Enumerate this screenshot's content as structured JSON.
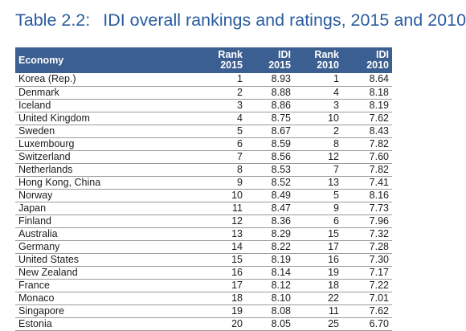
{
  "title": {
    "number": "Table 2.2:",
    "text": "IDI overall rankings and ratings, 2015 and 2010"
  },
  "columns": {
    "economy": "Economy",
    "rank2015": [
      "Rank",
      "2015"
    ],
    "idi2015": [
      "IDI",
      "2015"
    ],
    "rank2010": [
      "Rank",
      "2010"
    ],
    "idi2010": [
      "IDI",
      "2010"
    ]
  },
  "rows": [
    {
      "economy": "Korea (Rep.)",
      "rank2015": "1",
      "idi2015": "8.93",
      "rank2010": "1",
      "idi2010": "8.64"
    },
    {
      "economy": "Denmark",
      "rank2015": "2",
      "idi2015": "8.88",
      "rank2010": "4",
      "idi2010": "8.18"
    },
    {
      "economy": "Iceland",
      "rank2015": "3",
      "idi2015": "8.86",
      "rank2010": "3",
      "idi2010": "8.19"
    },
    {
      "economy": "United Kingdom",
      "rank2015": "4",
      "idi2015": "8.75",
      "rank2010": "10",
      "idi2010": "7.62"
    },
    {
      "economy": "Sweden",
      "rank2015": "5",
      "idi2015": "8.67",
      "rank2010": "2",
      "idi2010": "8.43"
    },
    {
      "economy": "Luxembourg",
      "rank2015": "6",
      "idi2015": "8.59",
      "rank2010": "8",
      "idi2010": "7.82"
    },
    {
      "economy": "Switzerland",
      "rank2015": "7",
      "idi2015": "8.56",
      "rank2010": "12",
      "idi2010": "7.60"
    },
    {
      "economy": "Netherlands",
      "rank2015": "8",
      "idi2015": "8.53",
      "rank2010": "7",
      "idi2010": "7.82"
    },
    {
      "economy": "Hong Kong, China",
      "rank2015": "9",
      "idi2015": "8.52",
      "rank2010": "13",
      "idi2010": "7.41"
    },
    {
      "economy": "Norway",
      "rank2015": "10",
      "idi2015": "8.49",
      "rank2010": "5",
      "idi2010": "8.16"
    },
    {
      "economy": "Japan",
      "rank2015": "11",
      "idi2015": "8.47",
      "rank2010": "9",
      "idi2010": "7.73"
    },
    {
      "economy": "Finland",
      "rank2015": "12",
      "idi2015": "8.36",
      "rank2010": "6",
      "idi2010": "7.96"
    },
    {
      "economy": "Australia",
      "rank2015": "13",
      "idi2015": "8.29",
      "rank2010": "15",
      "idi2010": "7.32"
    },
    {
      "economy": "Germany",
      "rank2015": "14",
      "idi2015": "8.22",
      "rank2010": "17",
      "idi2010": "7.28"
    },
    {
      "economy": "United States",
      "rank2015": "15",
      "idi2015": "8.19",
      "rank2010": "16",
      "idi2010": "7.30"
    },
    {
      "economy": "New Zealand",
      "rank2015": "16",
      "idi2015": "8.14",
      "rank2010": "19",
      "idi2010": "7.17"
    },
    {
      "economy": "France",
      "rank2015": "17",
      "idi2015": "8.12",
      "rank2010": "18",
      "idi2010": "7.22"
    },
    {
      "economy": "Monaco",
      "rank2015": "18",
      "idi2015": "8.10",
      "rank2010": "22",
      "idi2010": "7.01"
    },
    {
      "economy": "Singapore",
      "rank2015": "19",
      "idi2015": "8.08",
      "rank2010": "11",
      "idi2010": "7.62"
    },
    {
      "economy": "Estonia",
      "rank2015": "20",
      "idi2015": "8.05",
      "rank2010": "25",
      "idi2010": "6.70"
    }
  ],
  "colors": {
    "title": "#2a5c9e",
    "header_bg": "#3c5f91",
    "header_text": "#ffffff",
    "row_rule": "#9a9a9a"
  }
}
